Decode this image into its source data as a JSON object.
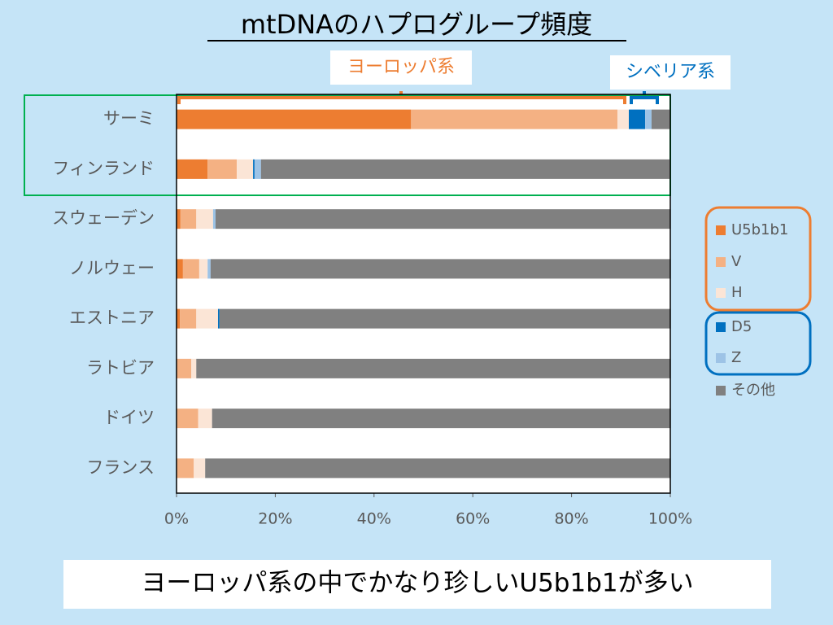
{
  "chart_data": {
    "type": "stacked-bar-horizontal",
    "title": "mtDNAのハプログループ頻度",
    "annotations": [
      "ヨーロッパ系",
      "シベリア系",
      "ヨーロッパ系の中でかなり珍しいU5b1b1が多い"
    ],
    "categories": [
      "サーミ",
      "フィンランド",
      "スウェーデン",
      "ノルウェー",
      "エストニア",
      "ラトビア",
      "ドイツ",
      "フランス"
    ],
    "series": [
      {
        "name": "U5b1b1",
        "color": "#ed7d31",
        "values": [
          47.5,
          6.3,
          0.8,
          1.3,
          0.7,
          0,
          0,
          0
        ]
      },
      {
        "name": "V",
        "color": "#f4b183",
        "values": [
          41.8,
          5.9,
          3.2,
          3.3,
          3.3,
          3.0,
          4.4,
          3.5
        ]
      },
      {
        "name": "H",
        "color": "#fbe5d6",
        "values": [
          2.3,
          3.3,
          3.4,
          1.7,
          4.4,
          1.0,
          2.8,
          2.3
        ]
      },
      {
        "name": "D5",
        "color": "#0070c0",
        "values": [
          3.3,
          0.3,
          0,
          0,
          0.3,
          0,
          0,
          0
        ]
      },
      {
        "name": "Z",
        "color": "#9dc3e6",
        "values": [
          1.3,
          1.3,
          0.5,
          0.6,
          0,
          0,
          0,
          0
        ]
      },
      {
        "name": "その他",
        "color": "#808080",
        "values": [
          3.8,
          82.9,
          92.1,
          93.1,
          91.3,
          96.0,
          92.8,
          94.2
        ]
      }
    ],
    "xlim": [
      0,
      100
    ],
    "xticks": [
      {
        "value": 0,
        "label": "0%"
      },
      {
        "value": 20,
        "label": "20%"
      },
      {
        "value": 40,
        "label": "40%"
      },
      {
        "value": 60,
        "label": "60%"
      },
      {
        "value": 80,
        "label": "80%"
      },
      {
        "value": 100,
        "label": "100%"
      }
    ],
    "grid": false
  }
}
